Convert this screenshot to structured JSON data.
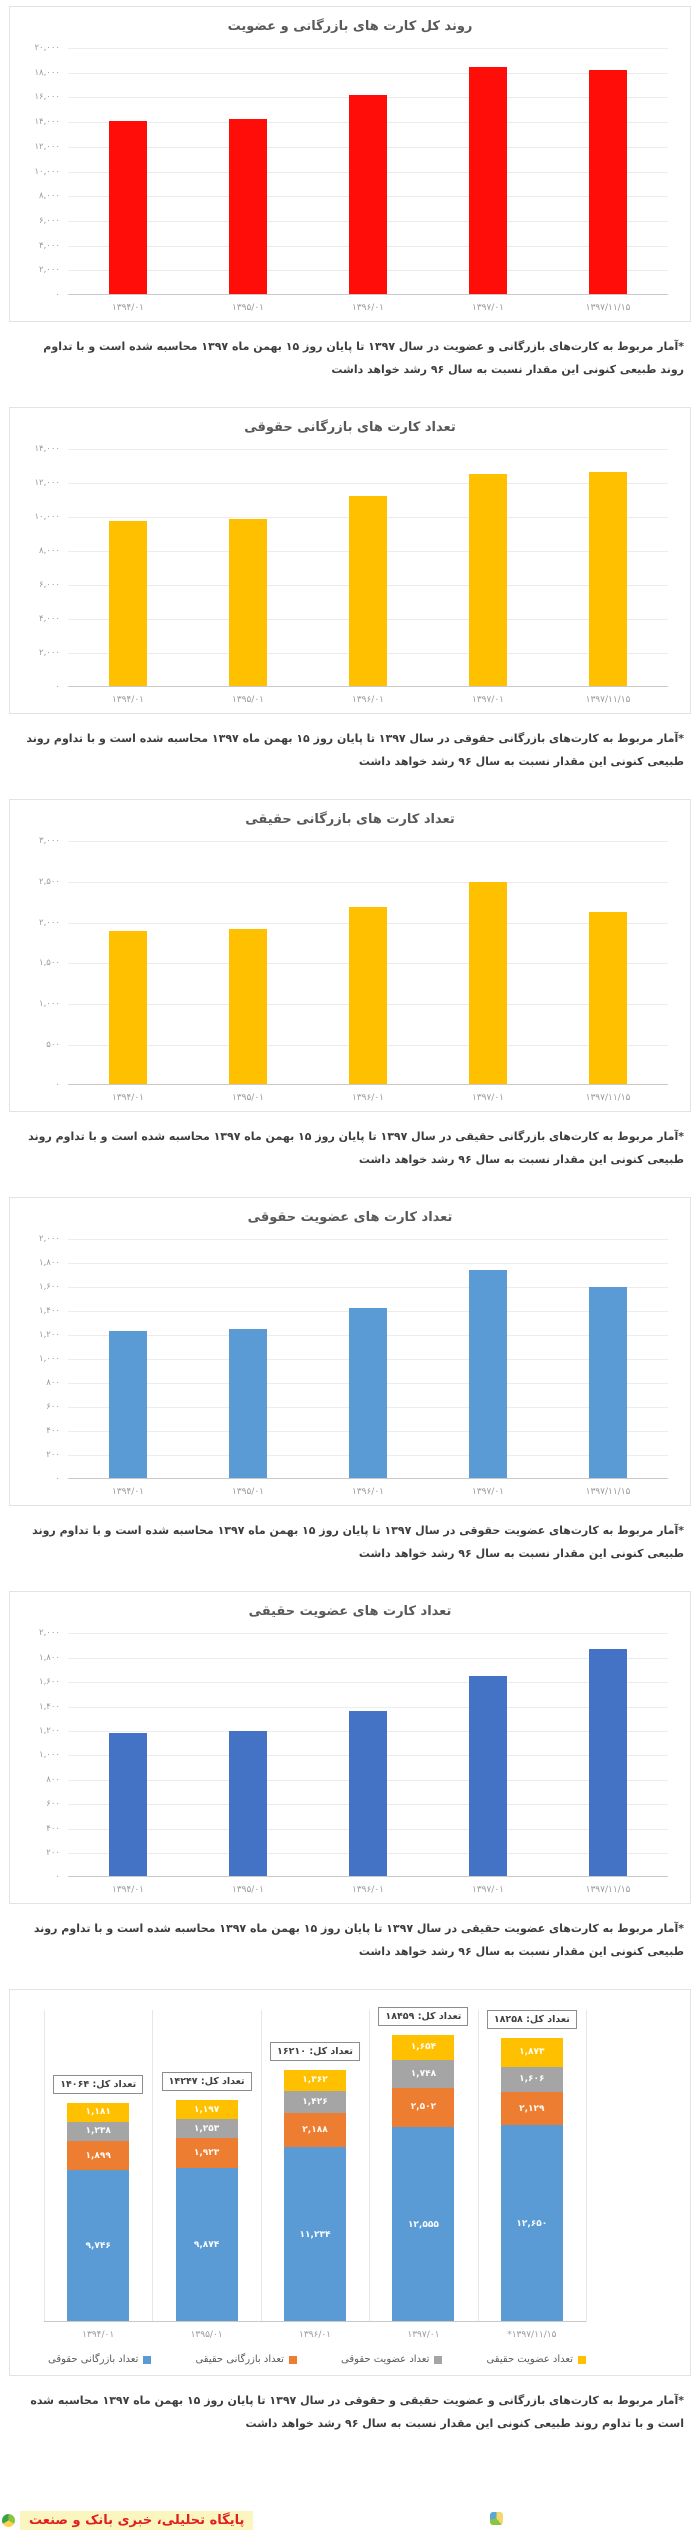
{
  "page": {
    "banner_text": "پایگاه تحلیلی، خبری بانک و صنعت"
  },
  "chart_data": [
    {
      "type": "bar",
      "title": "روند کل کارت های بازرگانی و عضویت",
      "categories": [
        "۱۳۹۴/۰۱",
        "۱۳۹۵/۰۱",
        "۱۳۹۶/۰۱",
        "۱۳۹۷/۰۱",
        "۱۳۹۷/۱۱/۱۵"
      ],
      "values": [
        14064,
        14247,
        16210,
        18459,
        18258
      ],
      "bar_color": "#fe0d09",
      "ylim": [
        0,
        20000
      ],
      "ytick_step": 2000,
      "tick_labels": [
        "۲۰,۰۰۰",
        "۱۸,۰۰۰",
        "۱۶,۰۰۰",
        "۱۴,۰۰۰",
        "۱۲,۰۰۰",
        "۱۰,۰۰۰",
        "۸,۰۰۰",
        "۶,۰۰۰",
        "۴,۰۰۰",
        "۲,۰۰۰",
        "۰"
      ],
      "grid": "horizontal",
      "legend": "none",
      "footnote": "*آمار مربوط به کارت‌های بازرگانی و عضویت در سال ۱۳۹۷ تا پایان روز ۱۵ بهمن ماه ۱۳۹۷ محاسبه شده است و با تداوم روند طبیعی کنونی این مقدار نسبت به سال ۹۶ رشد خواهد داشت"
    },
    {
      "type": "bar",
      "title": "تعداد کارت های بازرگانی حقوقی",
      "categories": [
        "۱۳۹۴/۰۱",
        "۱۳۹۵/۰۱",
        "۱۳۹۶/۰۱",
        "۱۳۹۷/۰۱",
        "۱۳۹۷/۱۱/۱۵"
      ],
      "values": [
        9746,
        9874,
        11234,
        12555,
        12650
      ],
      "bar_color": "#FFC000",
      "ylim": [
        0,
        14000
      ],
      "ytick_step": 2000,
      "tick_labels": [
        "۱۴,۰۰۰",
        "۱۲,۰۰۰",
        "۱۰,۰۰۰",
        "۸,۰۰۰",
        "۶,۰۰۰",
        "۴,۰۰۰",
        "۲,۰۰۰",
        "۰"
      ],
      "grid": "horizontal",
      "legend": "none",
      "footnote": "*آمار مربوط به کارت‌های بازرگانی حقوقی در سال ۱۳۹۷ تا پایان روز ۱۵ بهمن ماه ۱۳۹۷ محاسبه شده است و با تداوم روند طبیعی کنونی این مقدار نسبت به سال ۹۶ رشد خواهد داشت"
    },
    {
      "type": "bar",
      "title": "تعداد کارت های بازرگانی حقیقی",
      "categories": [
        "۱۳۹۴/۰۱",
        "۱۳۹۵/۰۱",
        "۱۳۹۶/۰۱",
        "۱۳۹۷/۰۱",
        "۱۳۹۷/۱۱/۱۵"
      ],
      "values": [
        1899,
        1923,
        2188,
        2502,
        2129
      ],
      "bar_color": "#FFC000",
      "ylim": [
        0,
        3000
      ],
      "ytick_step": 500,
      "tick_labels": [
        "۳,۰۰۰",
        "۲,۵۰۰",
        "۲,۰۰۰",
        "۱,۵۰۰",
        "۱,۰۰۰",
        "۵۰۰",
        "۰"
      ],
      "grid": "horizontal",
      "legend": "none",
      "footnote": "*آمار مربوط به کارت‌های بازرگانی حقیقی در سال ۱۳۹۷ تا پایان روز ۱۵ بهمن ماه ۱۳۹۷ محاسبه شده است و با تداوم روند طبیعی کنونی این مقدار نسبت به سال ۹۶ رشد خواهد داشت"
    },
    {
      "type": "bar",
      "title": "تعداد کارت های عضویت حقوقی",
      "categories": [
        "۱۳۹۴/۰۱",
        "۱۳۹۵/۰۱",
        "۱۳۹۶/۰۱",
        "۱۳۹۷/۰۱",
        "۱۳۹۷/۱۱/۱۵"
      ],
      "values": [
        1238,
        1253,
        1426,
        1748,
        1606
      ],
      "bar_color": "#5B9BD5",
      "ylim": [
        0,
        2000
      ],
      "ytick_step": 200,
      "tick_labels": [
        "۲,۰۰۰",
        "۱,۸۰۰",
        "۱,۶۰۰",
        "۱,۴۰۰",
        "۱,۲۰۰",
        "۱,۰۰۰",
        "۸۰۰",
        "۶۰۰",
        "۴۰۰",
        "۲۰۰",
        "۰"
      ],
      "grid": "horizontal",
      "legend": "none",
      "footnote": "*آمار مربوط به کارت‌های عضویت حقوقی در سال ۱۳۹۷ تا پایان روز ۱۵ بهمن ماه ۱۳۹۷ محاسبه شده است و با تداوم روند طبیعی کنونی این مقدار نسبت به سال ۹۶ رشد خواهد داشت"
    },
    {
      "type": "bar",
      "title": "تعداد کارت های عضویت حقیقی",
      "categories": [
        "۱۳۹۴/۰۱",
        "۱۳۹۵/۰۱",
        "۱۳۹۶/۰۱",
        "۱۳۹۷/۰۱",
        "۱۳۹۷/۱۱/۱۵"
      ],
      "values": [
        1181,
        1197,
        1362,
        1654,
        1873
      ],
      "bar_color": "#4472C4",
      "ylim": [
        0,
        2000
      ],
      "ytick_step": 200,
      "tick_labels": [
        "۲,۰۰۰",
        "۱,۸۰۰",
        "۱,۶۰۰",
        "۱,۴۰۰",
        "۱,۲۰۰",
        "۱,۰۰۰",
        "۸۰۰",
        "۶۰۰",
        "۴۰۰",
        "۲۰۰",
        "۰"
      ],
      "grid": "horizontal",
      "legend": "none",
      "footnote": "*آمار مربوط به کارت‌های عضویت حقیقی در سال ۱۳۹۷ تا پایان روز ۱۵ بهمن ماه ۱۳۹۷ محاسبه شده است و با تداوم روند طبیعی کنونی این مقدار نسبت به سال ۹۶ رشد خواهد داشت"
    },
    {
      "type": "stacked-bar",
      "title": "",
      "categories": [
        "۱۳۹۴/۰۱",
        "۱۳۹۵/۰۱",
        "۱۳۹۶/۰۱",
        "۱۳۹۷/۰۱",
        "*۱۳۹۷/۱۱/۱۵"
      ],
      "ylim": [
        0,
        20000
      ],
      "grid": "vertical-category",
      "legend": "bottom",
      "series": [
        {
          "name": "تعداد بازرگانی حقوقی",
          "color": "#5B9BD5",
          "values": [
            9746,
            9874,
            11234,
            12555,
            12650
          ],
          "labels": [
            "۹,۷۴۶",
            "۹,۸۷۴",
            "۱۱,۲۳۴",
            "۱۲,۵۵۵",
            "۱۲,۶۵۰"
          ]
        },
        {
          "name": "تعداد بازرگانی حقیقی",
          "color": "#ED7D31",
          "values": [
            1899,
            1923,
            2188,
            2502,
            2129
          ],
          "labels": [
            "۱,۸۹۹",
            "۱,۹۲۳",
            "۲,۱۸۸",
            "۲,۵۰۲",
            "۲,۱۲۹"
          ]
        },
        {
          "name": "تعداد عضویت حقوقی",
          "color": "#A5A5A5",
          "values": [
            1238,
            1253,
            1426,
            1748,
            1606
          ],
          "labels": [
            "۱,۲۳۸",
            "۱,۲۵۳",
            "۱,۴۲۶",
            "۱,۷۴۸",
            "۱,۶۰۶"
          ]
        },
        {
          "name": "تعداد عضویت حقیقی",
          "color": "#FFC000",
          "values": [
            1181,
            1197,
            1362,
            1654,
            1873
          ],
          "labels": [
            "۱,۱۸۱",
            "۱,۱۹۷",
            "۱,۳۶۲",
            "۱,۶۵۴",
            "۱,۸۷۳"
          ]
        }
      ],
      "totals": {
        "values": [
          14064,
          14247,
          16210,
          18459,
          18258
        ],
        "labels": [
          "تعداد کل: ۱۴۰۶۴",
          "تعداد کل: ۱۴۲۴۷",
          "تعداد کل: ۱۶۲۱۰",
          "تعداد کل: ۱۸۴۵۹",
          "تعداد کل: ۱۸۲۵۸"
        ]
      },
      "footnote": "*آمار مربوط به کارت‌های بازرگانی و عضویت حقیقی و حقوقی در سال ۱۳۹۷ تا پایان روز ۱۵ بهمن ماه ۱۳۹۷ محاسبه شده است و با تداوم روند طبیعی کنونی این مقدار نسبت به سال ۹۶ رشد خواهد داشت"
    }
  ]
}
